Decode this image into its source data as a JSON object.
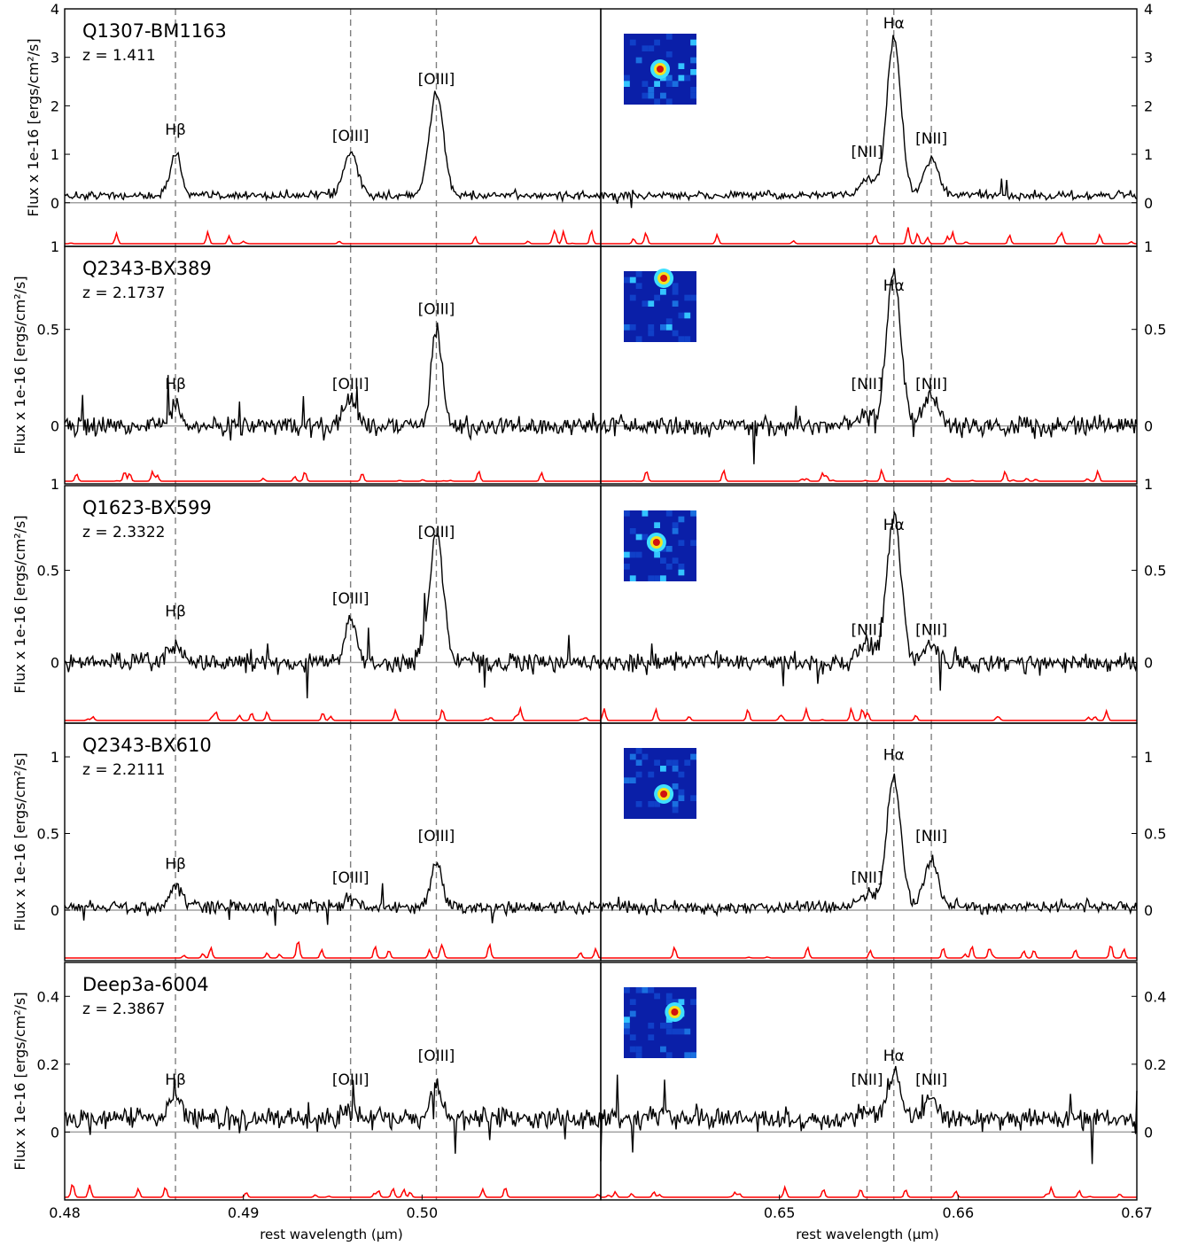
{
  "chart_data": {
    "type": "line",
    "xlabel": "rest wavelength (μm)",
    "ylabel": "Flux x 1e-16 [ergs/cm²/s]",
    "left_xlim": [
      0.48,
      0.51
    ],
    "right_xlim": [
      0.64,
      0.67
    ],
    "left_xticks": [
      "0.48",
      "0.49",
      "0.50"
    ],
    "right_xticks": [
      "0.65",
      "0.66",
      "0.67"
    ],
    "line_markers_left": [
      {
        "label": "Hβ",
        "x": 0.4862
      },
      {
        "label": "[OIII]",
        "x": 0.496
      },
      {
        "label": "[OIII]",
        "x": 0.5008
      }
    ],
    "line_markers_right": [
      {
        "label": "[NII]",
        "x": 0.6549
      },
      {
        "label": "Hα",
        "x": 0.6564
      },
      {
        "label": "[NII]",
        "x": 0.6585
      }
    ],
    "noise_color": "#ff0000",
    "spectrum_color": "#000000",
    "panels": [
      {
        "name": "Q1307-BM1163",
        "redshift": "z = 1.411",
        "ylim": [
          -0.9,
          4.0
        ],
        "yticks": [
          {
            "v": 0,
            "t": "0"
          },
          {
            "v": 1,
            "t": "1"
          },
          {
            "v": 2,
            "t": "2"
          },
          {
            "v": 3,
            "t": "3"
          },
          {
            "v": 4,
            "t": "4"
          }
        ],
        "bottom_label": "1",
        "left_lines": [
          {
            "x": 0.4862,
            "amp": 0.9,
            "w": 0.0003
          },
          {
            "x": 0.496,
            "amp": 0.85,
            "w": 0.0004
          },
          {
            "x": 0.5008,
            "amp": 2.1,
            "w": 0.0004
          }
        ],
        "right_lines": [
          {
            "x": 0.6549,
            "amp": 0.35,
            "w": 0.0004
          },
          {
            "x": 0.6564,
            "amp": 3.2,
            "w": 0.0004
          },
          {
            "x": 0.6585,
            "amp": 0.75,
            "w": 0.0004
          }
        ],
        "noise": 0.09,
        "cont": 0.15,
        "markers": {
          "hb": [
            0.4862,
            1.4
          ],
          "o1": [
            0.496,
            1.28
          ],
          "o2": [
            0.5008,
            2.45
          ],
          "n1": [
            0.6549,
            0.95
          ],
          "ha": [
            0.6564,
            3.6
          ],
          "n2": [
            0.6585,
            1.22
          ]
        }
      },
      {
        "name": "Q2343-BX389",
        "redshift": "z = 2.1737",
        "ylim": [
          -0.3,
          0.93
        ],
        "yticks": [
          {
            "v": 0,
            "t": "0"
          },
          {
            "v": 0.5,
            "t": "0.5"
          }
        ],
        "bottom_label": "1",
        "left_lines": [
          {
            "x": 0.4862,
            "amp": 0.1,
            "w": 0.0003
          },
          {
            "x": 0.496,
            "amp": 0.15,
            "w": 0.0003
          },
          {
            "x": 0.5008,
            "amp": 0.5,
            "w": 0.0003
          }
        ],
        "right_lines": [
          {
            "x": 0.6549,
            "amp": 0.06,
            "w": 0.0004
          },
          {
            "x": 0.6564,
            "amp": 0.78,
            "w": 0.0004
          },
          {
            "x": 0.6585,
            "amp": 0.16,
            "w": 0.0004
          }
        ],
        "noise": 0.05,
        "cont": 0.0,
        "markers": {
          "hb": [
            0.4862,
            0.19
          ],
          "o1": [
            0.496,
            0.19
          ],
          "o2": [
            0.5008,
            0.58
          ],
          "n1": [
            0.6549,
            0.19
          ],
          "ha": [
            0.6564,
            0.7
          ],
          "n2": [
            0.6585,
            0.19
          ]
        }
      },
      {
        "name": "Q1623-BX599",
        "redshift": "z = 2.3322",
        "ylim": [
          -0.33,
          0.96
        ],
        "yticks": [
          {
            "v": 0,
            "t": "0"
          },
          {
            "v": 0.5,
            "t": "0.5"
          }
        ],
        "bottom_label": "",
        "left_lines": [
          {
            "x": 0.4862,
            "amp": 0.1,
            "w": 0.0003
          },
          {
            "x": 0.496,
            "amp": 0.25,
            "w": 0.0003
          },
          {
            "x": 0.5008,
            "amp": 0.7,
            "w": 0.0004
          }
        ],
        "right_lines": [
          {
            "x": 0.6549,
            "amp": 0.1,
            "w": 0.0004
          },
          {
            "x": 0.6564,
            "amp": 0.8,
            "w": 0.0004
          },
          {
            "x": 0.6585,
            "amp": 0.1,
            "w": 0.0004
          }
        ],
        "noise": 0.05,
        "cont": 0.0,
        "markers": {
          "hb": [
            0.4862,
            0.25
          ],
          "o1": [
            0.496,
            0.32
          ],
          "o2": [
            0.5008,
            0.68
          ],
          "n1": [
            0.6549,
            0.15
          ],
          "ha": [
            0.6564,
            0.72
          ],
          "n2": [
            0.6585,
            0.15
          ]
        }
      },
      {
        "name": "Q2343-BX610",
        "redshift": "z = 2.2111",
        "ylim": [
          -0.33,
          1.22
        ],
        "yticks": [
          {
            "v": 0,
            "t": "0"
          },
          {
            "v": 0.5,
            "t": "0.5"
          },
          {
            "v": 1,
            "t": "1"
          }
        ],
        "bottom_label": "",
        "left_lines": [
          {
            "x": 0.4862,
            "amp": 0.15,
            "w": 0.0003
          },
          {
            "x": 0.496,
            "amp": 0.06,
            "w": 0.0003
          },
          {
            "x": 0.5008,
            "amp": 0.3,
            "w": 0.0003
          }
        ],
        "right_lines": [
          {
            "x": 0.6549,
            "amp": 0.08,
            "w": 0.0004
          },
          {
            "x": 0.6564,
            "amp": 0.85,
            "w": 0.0004
          },
          {
            "x": 0.6585,
            "amp": 0.3,
            "w": 0.0004
          }
        ],
        "noise": 0.04,
        "cont": 0.02,
        "markers": {
          "hb": [
            0.4862,
            0.27
          ],
          "o1": [
            0.496,
            0.18
          ],
          "o2": [
            0.5008,
            0.45
          ],
          "n1": [
            0.6549,
            0.18
          ],
          "ha": [
            0.6564,
            0.98
          ],
          "n2": [
            0.6585,
            0.45
          ]
        }
      },
      {
        "name": "Deep3a-6004",
        "redshift": "z = 2.3867",
        "ylim": [
          -0.2,
          0.5
        ],
        "yticks": [
          {
            "v": 0,
            "t": "0"
          },
          {
            "v": 0.2,
            "t": "0.2"
          },
          {
            "v": 0.4,
            "t": "0.4"
          }
        ],
        "bottom_label": "",
        "left_lines": [
          {
            "x": 0.4862,
            "amp": 0.08,
            "w": 0.0003
          },
          {
            "x": 0.496,
            "amp": 0.03,
            "w": 0.0003
          },
          {
            "x": 0.5008,
            "amp": 0.1,
            "w": 0.0003
          }
        ],
        "right_lines": [
          {
            "x": 0.6549,
            "amp": 0.02,
            "w": 0.0004
          },
          {
            "x": 0.6564,
            "amp": 0.13,
            "w": 0.0004
          },
          {
            "x": 0.6585,
            "amp": 0.06,
            "w": 0.0004
          }
        ],
        "noise": 0.03,
        "cont": 0.04,
        "markers": {
          "hb": [
            0.4862,
            0.14
          ],
          "o1": [
            0.496,
            0.14
          ],
          "o2": [
            0.5008,
            0.21
          ],
          "n1": [
            0.6549,
            0.14
          ],
          "ha": [
            0.6564,
            0.21
          ],
          "n2": [
            0.6585,
            0.14
          ]
        }
      }
    ]
  }
}
